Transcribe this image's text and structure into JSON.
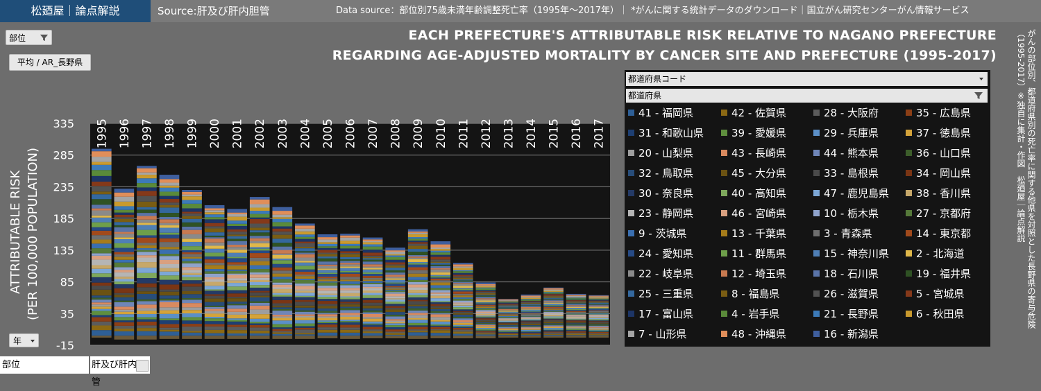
{
  "header": {
    "brand": "松廼屋｜論点解説",
    "source": "Source:肝及び肝内胆管",
    "data_source": "Data source：部位別75歳未満年齢調整死亡率（1995年～2017年）｜ *がんに関する統計データのダウンロード｜国立がん研究センターがん情報サービス"
  },
  "title_line1": "EACH PREFECTURE'S ATTRIBUTABLE RISK RELATIVE TO NAGANO PREFECTURE",
  "title_line2": "REGARDING AGE-ADJUSTED MORTALITY BY CANCER SITE AND PREFECTURE (1995-2017)",
  "vertical_note": "がんの部位別、都道府県別の死亡率に関する他県を対照とした長野県の寄与危険（1995-2017）※独自に集計・作図　松廼屋｜論点解説",
  "controls": {
    "filter_button": "部位",
    "value_button": "平均 / AR_長野県",
    "axis_button": "年",
    "bottom_label": "部位",
    "bottom_value": "肝及び肝内胆管"
  },
  "legend_headers": {
    "code": "都道府県コード",
    "pref": "都道府県"
  },
  "colors": {
    "background": "#6d6d6d",
    "plot_bg": "#141414",
    "brand": "#1f4e79",
    "grid": "#808080",
    "text": "#ffffff"
  },
  "chart_data": {
    "type": "bar",
    "stacked": true,
    "ylabel_line1": "ATTRIBUTABLE RISK",
    "ylabel_line2": "(PER 100,000 POPULATION)",
    "ylim": [
      -15,
      335
    ],
    "yticks": [
      "335",
      "285",
      "235",
      "185",
      "135",
      "85",
      "35",
      "-15"
    ],
    "grid": true,
    "legend_position": "right",
    "categories": [
      "1995",
      "1996",
      "1997",
      "1998",
      "1999",
      "2000",
      "2001",
      "2002",
      "2003",
      "2004",
      "2005",
      "2006",
      "2007",
      "2008",
      "2009",
      "2010",
      "2011",
      "2012",
      "2013",
      "2014",
      "2015",
      "2016",
      "2017"
    ],
    "totals": [
      295,
      232,
      268,
      254,
      230,
      206,
      200,
      219,
      203,
      177,
      160,
      161,
      155,
      139,
      168,
      149,
      115,
      84,
      58,
      65,
      76,
      66,
      64
    ],
    "negatives": [
      -3,
      -6,
      -6,
      -5,
      -5,
      -5,
      -5,
      -5,
      -5,
      -5,
      -4,
      -5,
      -4,
      -4,
      -5,
      -4,
      -4,
      -4,
      -3,
      -3,
      -3,
      -3,
      -3
    ],
    "series": [
      {
        "name": "41 - 福岡県",
        "color": "#2e5f96"
      },
      {
        "name": "42 - 佐賀県",
        "color": "#8b6914"
      },
      {
        "name": "28 - 大阪府",
        "color": "#5c5c5c"
      },
      {
        "name": "35 - 広島県",
        "color": "#8c3f16"
      },
      {
        "name": "31 - 和歌山県",
        "color": "#1e3f73"
      },
      {
        "name": "39 - 愛媛県",
        "color": "#5f8f3e"
      },
      {
        "name": "29 - 兵庫県",
        "color": "#5b8fc7"
      },
      {
        "name": "37 - 徳島県",
        "color": "#d4a33a"
      },
      {
        "name": "20 - 山梨県",
        "color": "#9e9e9e"
      },
      {
        "name": "43 - 長崎県",
        "color": "#d98a5f"
      },
      {
        "name": "44 - 熊本県",
        "color": "#6f86b8"
      },
      {
        "name": "36 - 山口県",
        "color": "#3d5e2b"
      },
      {
        "name": "32 - 鳥取県",
        "color": "#284d7a"
      },
      {
        "name": "45 - 大分県",
        "color": "#6b5212"
      },
      {
        "name": "33 - 島根県",
        "color": "#4a4a4a"
      },
      {
        "name": "34 - 岡山県",
        "color": "#7a3514"
      },
      {
        "name": "30 - 奈良県",
        "color": "#243a66"
      },
      {
        "name": "40 - 高知県",
        "color": "#7ea85c"
      },
      {
        "name": "47 - 鹿児島県",
        "color": "#7ca7d6"
      },
      {
        "name": "38 - 香川県",
        "color": "#c7a86a"
      },
      {
        "name": "23 - 静岡県",
        "color": "#b5b5b5"
      },
      {
        "name": "46 - 宮崎県",
        "color": "#d9a080"
      },
      {
        "name": "10 - 栃木県",
        "color": "#8fa3cc"
      },
      {
        "name": "27 - 京都府",
        "color": "#567a3a"
      },
      {
        "name": "9 - 茨城県",
        "color": "#3a6fb0"
      },
      {
        "name": "13 - 千葉県",
        "color": "#a67c1a"
      },
      {
        "name": "3 - 青森県",
        "color": "#6e6e6e"
      },
      {
        "name": "14 - 東京都",
        "color": "#a14a1c"
      },
      {
        "name": "24 - 愛知県",
        "color": "#264a85"
      },
      {
        "name": "11 - 群馬県",
        "color": "#6e9f4a"
      },
      {
        "name": "15 - 神奈川県",
        "color": "#4f7fb5"
      },
      {
        "name": "2 - 北海道",
        "color": "#e0b84a"
      },
      {
        "name": "22 - 岐阜県",
        "color": "#8a8a8a"
      },
      {
        "name": "12 - 埼玉県",
        "color": "#c87a50"
      },
      {
        "name": "18 - 石川県",
        "color": "#5a74a8"
      },
      {
        "name": "19 - 福井県",
        "color": "#2f5224"
      },
      {
        "name": "25 - 三重県",
        "color": "#34689e"
      },
      {
        "name": "8 - 福島県",
        "color": "#7a5d13"
      },
      {
        "name": "26 - 滋賀県",
        "color": "#525252"
      },
      {
        "name": "5 - 宮城県",
        "color": "#85391a"
      },
      {
        "name": "17 - 富山県",
        "color": "#1d3566"
      },
      {
        "name": "4 - 岩手県",
        "color": "#5a8a3a"
      },
      {
        "name": "21 - 長野県",
        "color": "#3c7ab8"
      },
      {
        "name": "6 - 秋田県",
        "color": "#c99a2e"
      },
      {
        "name": "7 - 山形県",
        "color": "#a5a5a5"
      },
      {
        "name": "48 - 沖縄県",
        "color": "#e08e5a"
      },
      {
        "name": "16 - 新潟県",
        "color": "#3f5f9e"
      }
    ]
  }
}
